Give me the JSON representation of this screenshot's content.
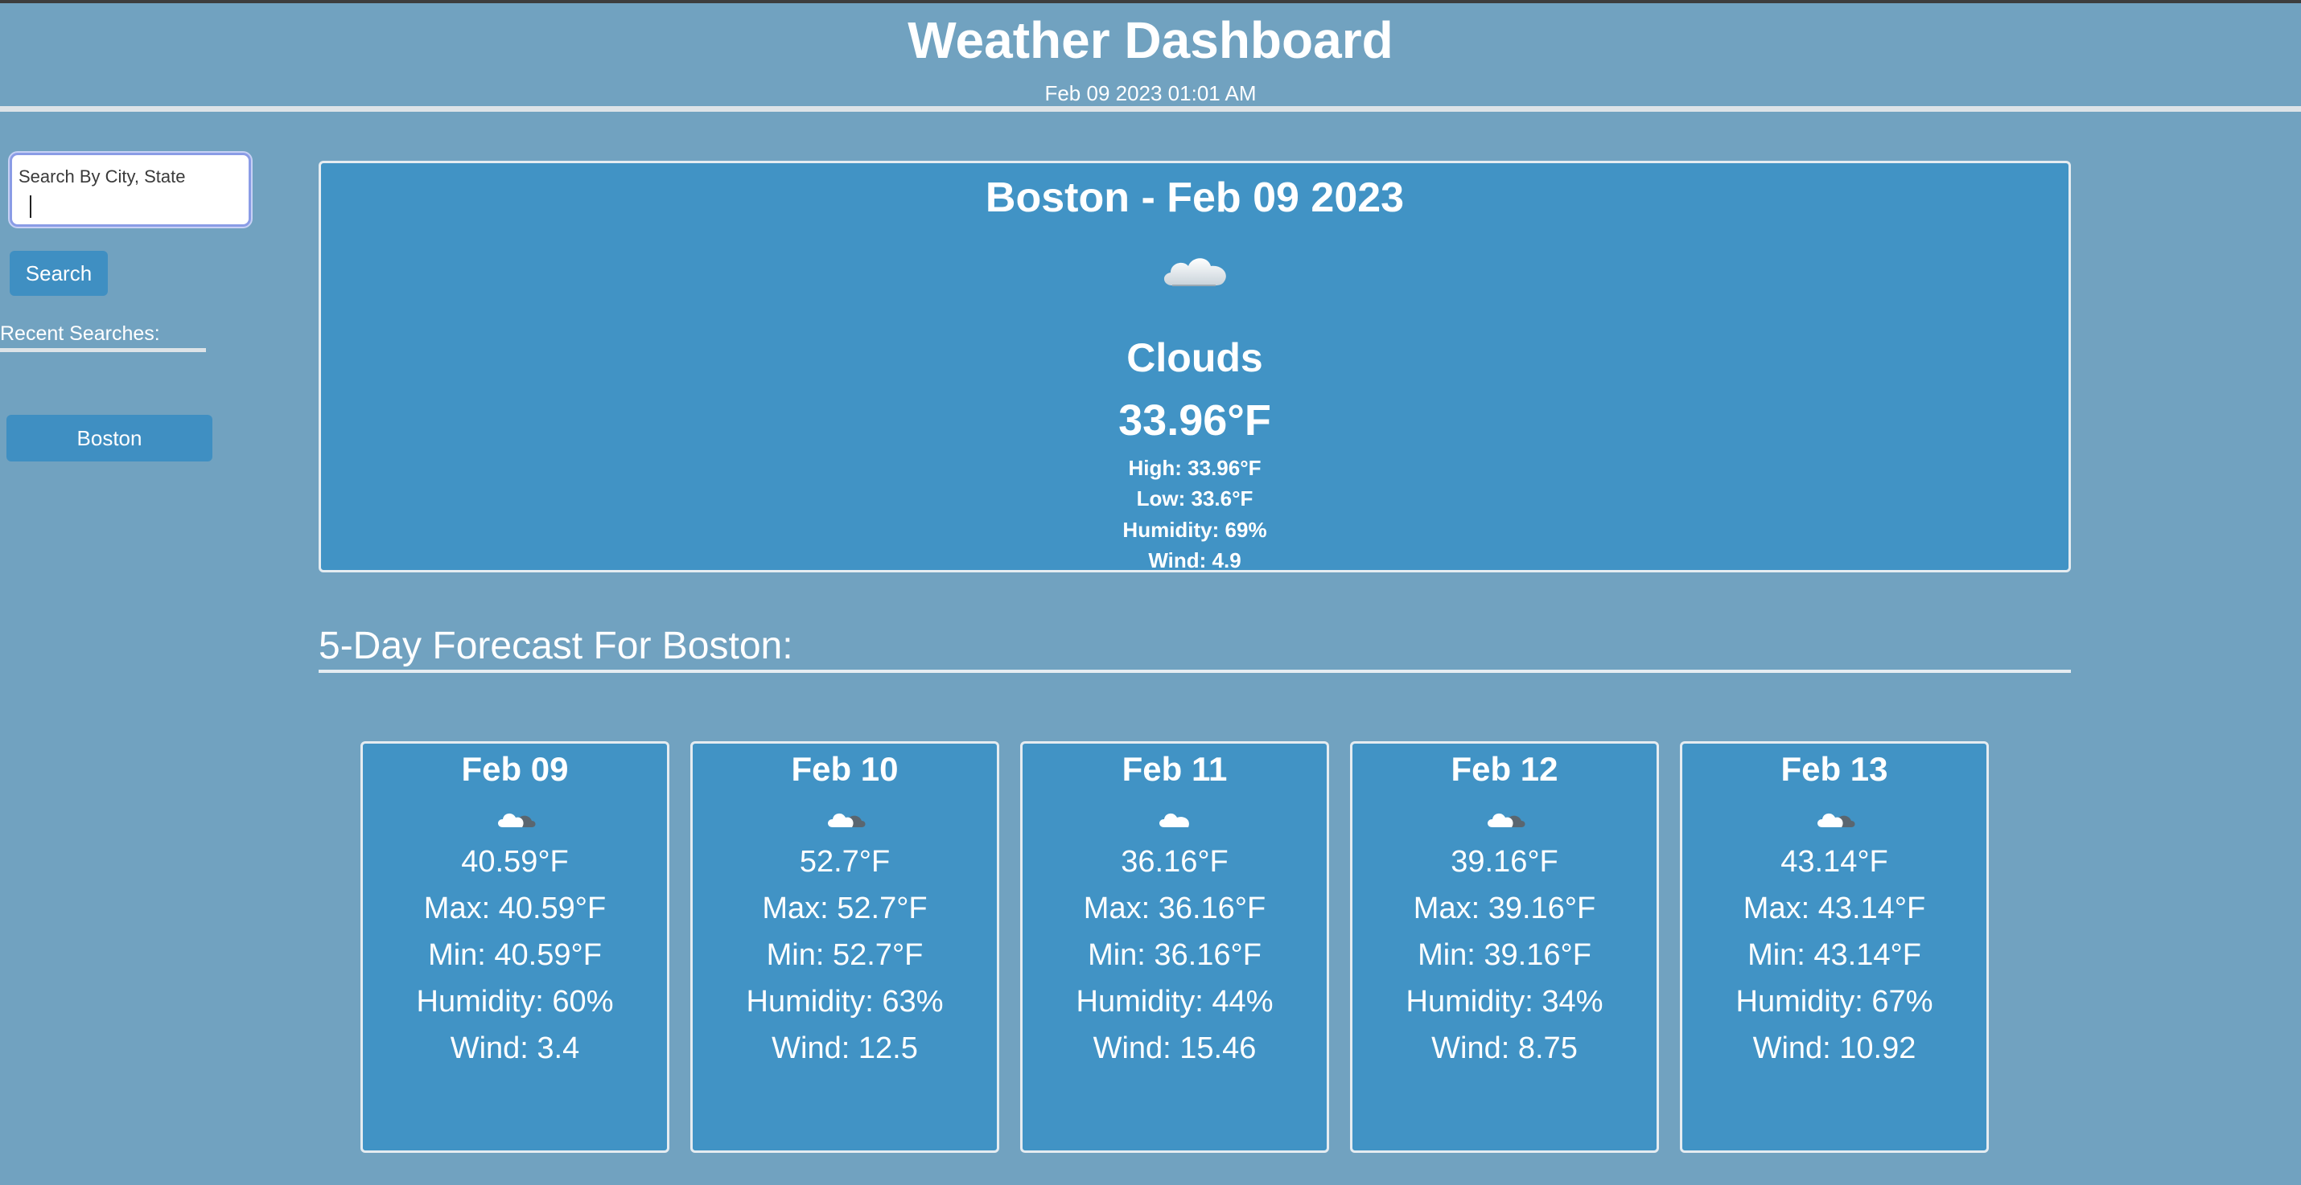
{
  "header": {
    "title": "Weather Dashboard",
    "datetime": "Feb 09 2023 01:01 AM"
  },
  "sidebar": {
    "search_label": "Search By City, State",
    "search_value": "",
    "search_button": "Search",
    "recent_title": "Recent Searches:",
    "recent_items": [
      "Boston"
    ]
  },
  "current": {
    "title": "Boston - Feb 09 2023",
    "icon": "clouds-icon",
    "description": "Clouds",
    "temp": "33.96°F",
    "high": "High: 33.96°F",
    "low": "Low: 33.6°F",
    "humidity": "Humidity: 69%",
    "wind": "Wind: 4.9"
  },
  "forecast": {
    "heading": "5-Day Forecast For Boston:",
    "days": [
      {
        "date": "Feb 09",
        "icon": "partly-cloudy-icon",
        "temp": "40.59°F",
        "max": "Max: 40.59°F",
        "min": "Min: 40.59°F",
        "humidity": "Humidity: 60%",
        "wind": "Wind: 3.4"
      },
      {
        "date": "Feb 10",
        "icon": "partly-cloudy-icon",
        "temp": "52.7°F",
        "max": "Max: 52.7°F",
        "min": "Min: 52.7°F",
        "humidity": "Humidity: 63%",
        "wind": "Wind: 12.5"
      },
      {
        "date": "Feb 11",
        "icon": "clouds-icon",
        "temp": "36.16°F",
        "max": "Max: 36.16°F",
        "min": "Min: 36.16°F",
        "humidity": "Humidity: 44%",
        "wind": "Wind: 15.46"
      },
      {
        "date": "Feb 12",
        "icon": "partly-cloudy-icon",
        "temp": "39.16°F",
        "max": "Max: 39.16°F",
        "min": "Min: 39.16°F",
        "humidity": "Humidity: 34%",
        "wind": "Wind: 8.75"
      },
      {
        "date": "Feb 13",
        "icon": "partly-cloudy-icon",
        "temp": "43.14°F",
        "max": "Max: 43.14°F",
        "min": "Min: 43.14°F",
        "humidity": "Humidity: 67%",
        "wind": "Wind: 10.92"
      }
    ]
  },
  "colors": {
    "background": "#71a2c0",
    "card": "#4193c5",
    "button": "#3f8fc2",
    "text": "#ffffff"
  }
}
